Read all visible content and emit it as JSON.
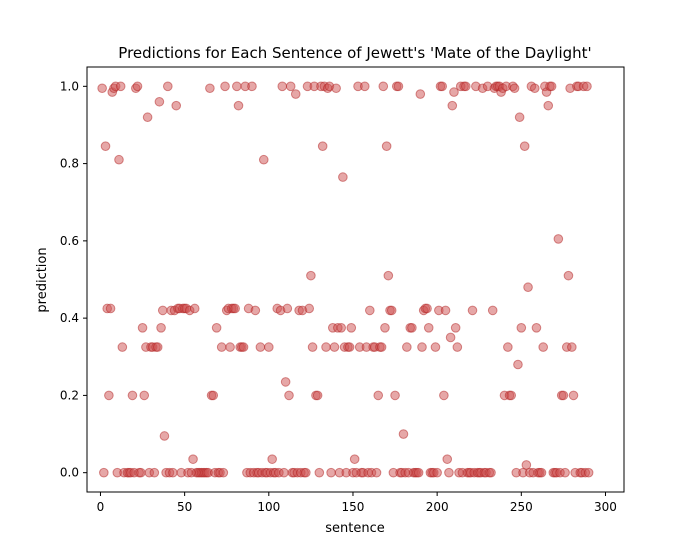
{
  "chart_data": {
    "type": "scatter",
    "title": "Predictions for Each Sentence of Jewett's 'Mate of the Daylight'",
    "xlabel": "sentence",
    "ylabel": "prediction",
    "xlim": [
      -8,
      311
    ],
    "ylim": [
      -0.05,
      1.05
    ],
    "xticks": [
      0,
      50,
      100,
      150,
      200,
      250,
      300
    ],
    "yticks": [
      0.0,
      0.2,
      0.4,
      0.6,
      0.8,
      1.0
    ],
    "xtick_labels": [
      "0",
      "50",
      "100",
      "150",
      "200",
      "250",
      "300"
    ],
    "ytick_labels": [
      "0.0",
      "0.2",
      "0.4",
      "0.6",
      "0.8",
      "1.0"
    ],
    "grid": false,
    "legend": "none",
    "marker_color": "#cd4f4f",
    "marker_edge_color": "#b22222",
    "marker_alpha": 0.5,
    "series": [
      {
        "points": [
          [
            1,
            0.995
          ],
          [
            2,
            0
          ],
          [
            3,
            0.845
          ],
          [
            4,
            0.425
          ],
          [
            5,
            0.2
          ],
          [
            6,
            0.425
          ],
          [
            7,
            0.985
          ],
          [
            8,
            0.995
          ],
          [
            9,
            1.0
          ],
          [
            10,
            0
          ],
          [
            11,
            0.81
          ],
          [
            12,
            1.0
          ],
          [
            13,
            0.325
          ],
          [
            14,
            0
          ],
          [
            16,
            0
          ],
          [
            17,
            0
          ],
          [
            18,
            0
          ],
          [
            19,
            0.2
          ],
          [
            20,
            0
          ],
          [
            21,
            0.995
          ],
          [
            22,
            1.0
          ],
          [
            23,
            0
          ],
          [
            24,
            0
          ],
          [
            25,
            0.375
          ],
          [
            26,
            0.2
          ],
          [
            27,
            0.325
          ],
          [
            28,
            0.92
          ],
          [
            29,
            0
          ],
          [
            30,
            0.325
          ],
          [
            31,
            0.325
          ],
          [
            32,
            0
          ],
          [
            33,
            0.325
          ],
          [
            34,
            0.325
          ],
          [
            35,
            0.96
          ],
          [
            36,
            0.375
          ],
          [
            37,
            0.42
          ],
          [
            38,
            0.095
          ],
          [
            39,
            0
          ],
          [
            40,
            1.0
          ],
          [
            41,
            0
          ],
          [
            42,
            0.42
          ],
          [
            43,
            0
          ],
          [
            44,
            0.42
          ],
          [
            45,
            0.95
          ],
          [
            46,
            0.425
          ],
          [
            47,
            0.425
          ],
          [
            48,
            0
          ],
          [
            49,
            0.425
          ],
          [
            50,
            0.425
          ],
          [
            51,
            0.425
          ],
          [
            52,
            0
          ],
          [
            53,
            0.42
          ],
          [
            54,
            0
          ],
          [
            55,
            0.035
          ],
          [
            56,
            0.425
          ],
          [
            57,
            0
          ],
          [
            58,
            0
          ],
          [
            59,
            0
          ],
          [
            60,
            0
          ],
          [
            61,
            0
          ],
          [
            62,
            0
          ],
          [
            63,
            0
          ],
          [
            64,
            0
          ],
          [
            65,
            0.995
          ],
          [
            66,
            0.2
          ],
          [
            67,
            0.2
          ],
          [
            68,
            0
          ],
          [
            69,
            0.375
          ],
          [
            70,
            0
          ],
          [
            71,
            0
          ],
          [
            72,
            0.325
          ],
          [
            73,
            0
          ],
          [
            74,
            1.0
          ],
          [
            75,
            0.42
          ],
          [
            76,
            0.425
          ],
          [
            77,
            0.325
          ],
          [
            78,
            0.425
          ],
          [
            79,
            0.425
          ],
          [
            80,
            0.425
          ],
          [
            81,
            1.0
          ],
          [
            82,
            0.95
          ],
          [
            83,
            0.325
          ],
          [
            84,
            0.325
          ],
          [
            85,
            0.325
          ],
          [
            86,
            1.0
          ],
          [
            87,
            0
          ],
          [
            88,
            0.425
          ],
          [
            89,
            0
          ],
          [
            90,
            1.0
          ],
          [
            91,
            0
          ],
          [
            92,
            0.42
          ],
          [
            93,
            0
          ],
          [
            94,
            0
          ],
          [
            95,
            0.325
          ],
          [
            96,
            0
          ],
          [
            97,
            0.81
          ],
          [
            98,
            0
          ],
          [
            99,
            0
          ],
          [
            100,
            0.325
          ],
          [
            101,
            0
          ],
          [
            102,
            0.035
          ],
          [
            103,
            0
          ],
          [
            104,
            0
          ],
          [
            105,
            0.425
          ],
          [
            106,
            0
          ],
          [
            107,
            0.42
          ],
          [
            108,
            1.0
          ],
          [
            109,
            0
          ],
          [
            110,
            0.235
          ],
          [
            111,
            0.425
          ],
          [
            112,
            0.2
          ],
          [
            113,
            1.0
          ],
          [
            114,
            0
          ],
          [
            115,
            0
          ],
          [
            116,
            0.98
          ],
          [
            117,
            0
          ],
          [
            118,
            0.42
          ],
          [
            119,
            0
          ],
          [
            120,
            0.42
          ],
          [
            121,
            0
          ],
          [
            122,
            0
          ],
          [
            123,
            1.0
          ],
          [
            124,
            0.425
          ],
          [
            125,
            0.51
          ],
          [
            126,
            0.325
          ],
          [
            127,
            1.0
          ],
          [
            128,
            0.2
          ],
          [
            129,
            0.2
          ],
          [
            130,
            0
          ],
          [
            131,
            1.0
          ],
          [
            132,
            0.845
          ],
          [
            133,
            1.0
          ],
          [
            134,
            0.325
          ],
          [
            135,
            0.995
          ],
          [
            136,
            1.0
          ],
          [
            137,
            0
          ],
          [
            138,
            0.375
          ],
          [
            139,
            0.325
          ],
          [
            140,
            0.995
          ],
          [
            141,
            0.375
          ],
          [
            142,
            0
          ],
          [
            143,
            0.375
          ],
          [
            144,
            0.765
          ],
          [
            145,
            0.325
          ],
          [
            146,
            0
          ],
          [
            147,
            0.325
          ],
          [
            148,
            0.325
          ],
          [
            149,
            0.375
          ],
          [
            150,
            0
          ],
          [
            151,
            0.035
          ],
          [
            152,
            0
          ],
          [
            153,
            1.0
          ],
          [
            154,
            0.325
          ],
          [
            155,
            0
          ],
          [
            156,
            0
          ],
          [
            157,
            1.0
          ],
          [
            158,
            0.325
          ],
          [
            159,
            0
          ],
          [
            160,
            0.42
          ],
          [
            161,
            0
          ],
          [
            162,
            0.325
          ],
          [
            163,
            0.325
          ],
          [
            164,
            0
          ],
          [
            165,
            0.2
          ],
          [
            166,
            0.325
          ],
          [
            167,
            0.325
          ],
          [
            168,
            1.0
          ],
          [
            169,
            0.375
          ],
          [
            170,
            0.845
          ],
          [
            171,
            0.51
          ],
          [
            172,
            0.42
          ],
          [
            173,
            0.42
          ],
          [
            174,
            0
          ],
          [
            175,
            0.2
          ],
          [
            176,
            1.0
          ],
          [
            177,
            1.0
          ],
          [
            178,
            0
          ],
          [
            179,
            0
          ],
          [
            180,
            0.1
          ],
          [
            181,
            0
          ],
          [
            182,
            0.325
          ],
          [
            183,
            0
          ],
          [
            184,
            0.375
          ],
          [
            185,
            0.375
          ],
          [
            186,
            0
          ],
          [
            187,
            0
          ],
          [
            188,
            0
          ],
          [
            189,
            0
          ],
          [
            190,
            0.98
          ],
          [
            191,
            0.325
          ],
          [
            192,
            0.42
          ],
          [
            193,
            0.425
          ],
          [
            194,
            0.425
          ],
          [
            195,
            0.375
          ],
          [
            196,
            0
          ],
          [
            197,
            0
          ],
          [
            198,
            0
          ],
          [
            199,
            0.325
          ],
          [
            200,
            0
          ],
          [
            201,
            0.42
          ],
          [
            202,
            1.0
          ],
          [
            203,
            1.0
          ],
          [
            204,
            0.2
          ],
          [
            205,
            0.42
          ],
          [
            206,
            0.035
          ],
          [
            207,
            0
          ],
          [
            208,
            0.35
          ],
          [
            209,
            0.95
          ],
          [
            210,
            0.985
          ],
          [
            211,
            0.375
          ],
          [
            212,
            0.325
          ],
          [
            213,
            0
          ],
          [
            214,
            1.0
          ],
          [
            215,
            0
          ],
          [
            216,
            1.0
          ],
          [
            217,
            1.0
          ],
          [
            218,
            0
          ],
          [
            219,
            0
          ],
          [
            220,
            0
          ],
          [
            221,
            0.42
          ],
          [
            222,
            0
          ],
          [
            223,
            1.0
          ],
          [
            224,
            0
          ],
          [
            225,
            0
          ],
          [
            226,
            0
          ],
          [
            227,
            0.995
          ],
          [
            228,
            0
          ],
          [
            229,
            0
          ],
          [
            230,
            1.0
          ],
          [
            231,
            0
          ],
          [
            232,
            0
          ],
          [
            233,
            0.42
          ],
          [
            234,
            0.995
          ],
          [
            235,
            1.0
          ],
          [
            236,
            1.0
          ],
          [
            237,
            1.0
          ],
          [
            238,
            0.985
          ],
          [
            239,
            0.995
          ],
          [
            240,
            0.2
          ],
          [
            241,
            1.0
          ],
          [
            242,
            0.325
          ],
          [
            243,
            0.2
          ],
          [
            244,
            0.2
          ],
          [
            245,
            1.0
          ],
          [
            246,
            0.995
          ],
          [
            247,
            0
          ],
          [
            248,
            0.28
          ],
          [
            249,
            0.92
          ],
          [
            250,
            0.375
          ],
          [
            251,
            0
          ],
          [
            252,
            0.845
          ],
          [
            253,
            0.02
          ],
          [
            254,
            0.48
          ],
          [
            255,
            0
          ],
          [
            256,
            1.0
          ],
          [
            257,
            0
          ],
          [
            258,
            0.995
          ],
          [
            259,
            0.375
          ],
          [
            260,
            0
          ],
          [
            261,
            0
          ],
          [
            262,
            0
          ],
          [
            263,
            0.325
          ],
          [
            264,
            1.0
          ],
          [
            265,
            0.985
          ],
          [
            266,
            0.95
          ],
          [
            267,
            1.0
          ],
          [
            268,
            1.0
          ],
          [
            269,
            0
          ],
          [
            270,
            0
          ],
          [
            271,
            0
          ],
          [
            272,
            0.605
          ],
          [
            273,
            0
          ],
          [
            274,
            0.2
          ],
          [
            275,
            0.2
          ],
          [
            276,
            0
          ],
          [
            277,
            0.325
          ],
          [
            278,
            0.51
          ],
          [
            279,
            0.995
          ],
          [
            280,
            0.325
          ],
          [
            281,
            0.2
          ],
          [
            282,
            0
          ],
          [
            283,
            1.0
          ],
          [
            284,
            1.0
          ],
          [
            285,
            0
          ],
          [
            286,
            0
          ],
          [
            287,
            1.0
          ],
          [
            288,
            0
          ],
          [
            289,
            1.0
          ],
          [
            290,
            0
          ]
        ]
      }
    ]
  }
}
